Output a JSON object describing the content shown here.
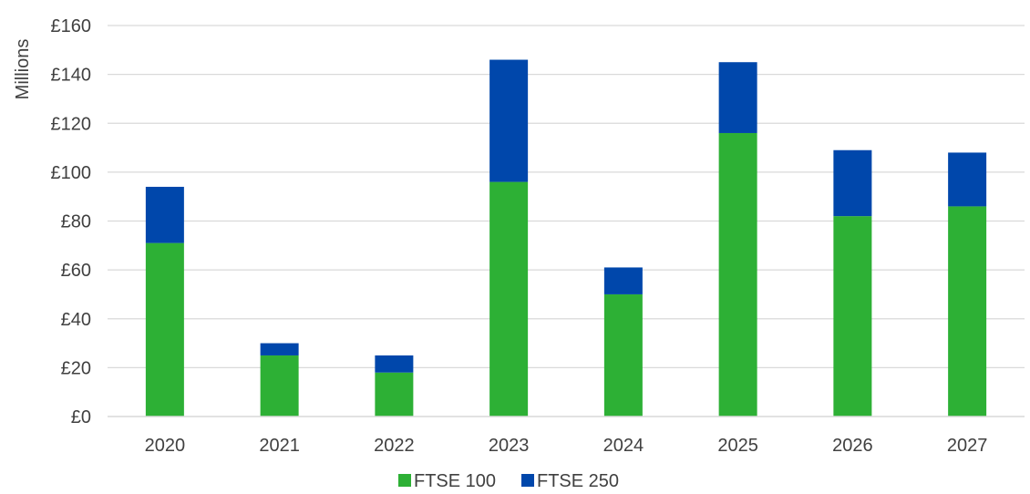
{
  "chart_data": {
    "type": "bar",
    "stacked": true,
    "categories": [
      "2020",
      "2021",
      "2022",
      "2023",
      "2024",
      "2025",
      "2026",
      "2027"
    ],
    "series": [
      {
        "name": "FTSE 100",
        "color": "#2DB035",
        "values": [
          71,
          25,
          18,
          96,
          50,
          116,
          82,
          86
        ]
      },
      {
        "name": "FTSE 250",
        "color": "#0047AB",
        "values": [
          23,
          5,
          7,
          50,
          11,
          29,
          27,
          22
        ]
      }
    ],
    "ylabel": "Millions",
    "ylim": [
      0,
      160
    ],
    "yticks": [
      0,
      20,
      40,
      60,
      80,
      100,
      120,
      140,
      160
    ],
    "ytick_labels": [
      "£0",
      "£20",
      "£40",
      "£60",
      "£80",
      "£100",
      "£120",
      "£140",
      "£160"
    ],
    "grid": true,
    "legend": "bottom-center"
  }
}
